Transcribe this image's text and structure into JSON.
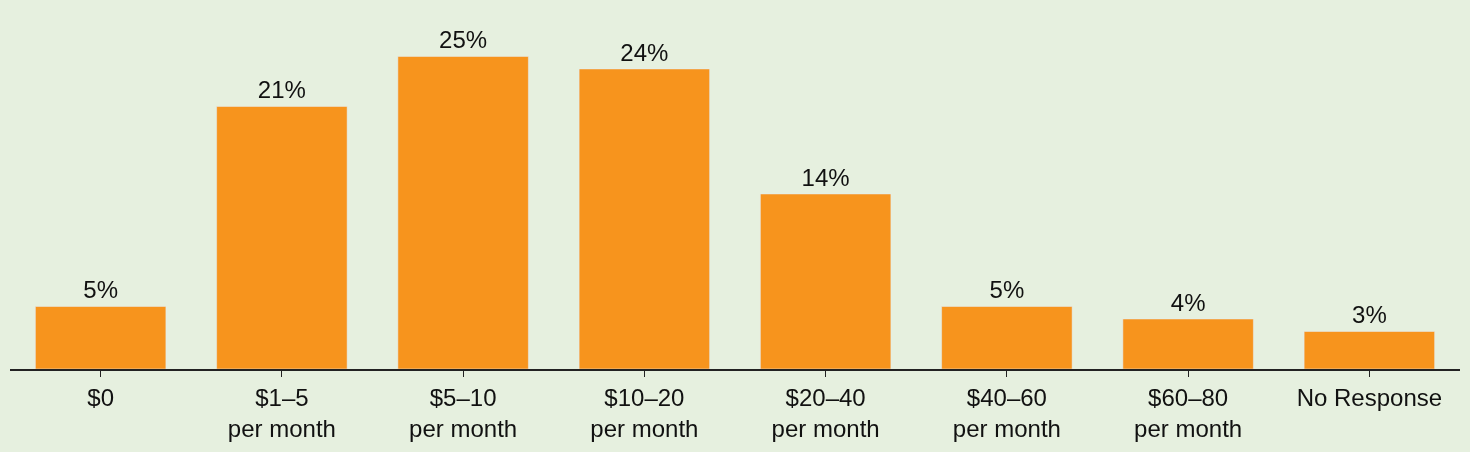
{
  "chart_data": {
    "type": "bar",
    "categories": [
      "$0",
      "$1–5\nper month",
      "$5–10\nper month",
      "$10–20\nper month",
      "$20–40\nper month",
      "$40–60\nper month",
      "$60–80\nper month",
      "No Response"
    ],
    "values": [
      5,
      21,
      25,
      24,
      14,
      5,
      4,
      3
    ],
    "value_labels": [
      "5%",
      "21%",
      "25%",
      "24%",
      "14%",
      "5%",
      "4%",
      "3%"
    ],
    "color": "#f7941d",
    "grid": false,
    "legend": false
  }
}
